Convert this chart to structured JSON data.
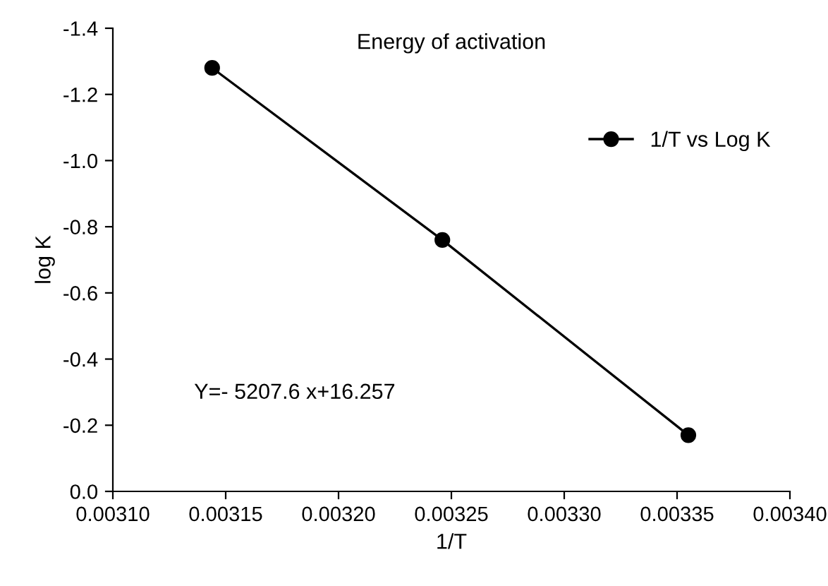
{
  "chart_data": {
    "type": "line",
    "title": "Energy of activation",
    "xlabel": "1/T",
    "ylabel": "log K",
    "x": [
      0.003144,
      0.003246,
      0.003355
    ],
    "series": [
      {
        "name": "1/T vs Log K",
        "color": "#000000",
        "values": [
          -1.28,
          -0.76,
          -0.17
        ]
      }
    ],
    "xlim": [
      0.0031,
      0.0034
    ],
    "xticks": [
      {
        "value": 0.0031,
        "label": "0.00310"
      },
      {
        "value": 0.00315,
        "label": "0.00315"
      },
      {
        "value": 0.0032,
        "label": "0.00320"
      },
      {
        "value": 0.00325,
        "label": "0.00325"
      },
      {
        "value": 0.0033,
        "label": "0.00330"
      },
      {
        "value": 0.00335,
        "label": "0.00335"
      },
      {
        "value": 0.0034,
        "label": "0.00340"
      }
    ],
    "ylim": [
      0,
      -1.4
    ],
    "yticks": [
      {
        "value": 0,
        "label": "0.0"
      },
      {
        "value": -0.2,
        "label": "-0.2"
      },
      {
        "value": -0.4,
        "label": "-0.4"
      },
      {
        "value": -0.6,
        "label": "-0.6"
      },
      {
        "value": -0.8,
        "label": "-0.8"
      },
      {
        "value": -1.0,
        "label": "-1.0"
      },
      {
        "value": -1.2,
        "label": "-1.2"
      },
      {
        "value": -1.4,
        "label": "-1.4"
      }
    ],
    "annotations": [
      "Y=- 5207.6 x+16.257"
    ],
    "marker": "circle",
    "line_style": "solid",
    "legend": "top right",
    "grid": false
  }
}
